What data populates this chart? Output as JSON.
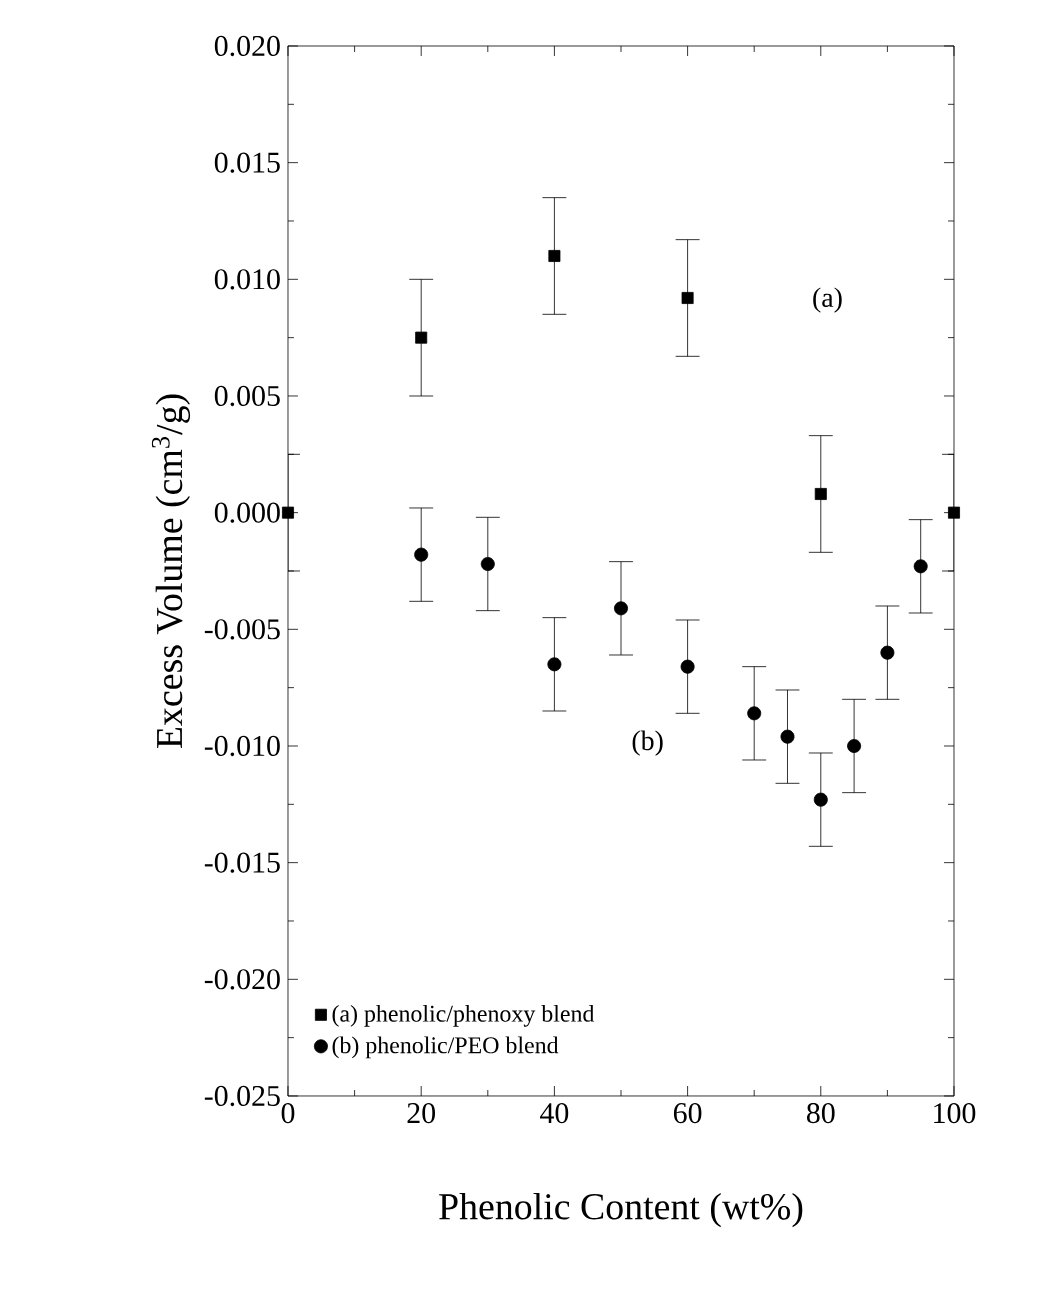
{
  "chart_data": {
    "type": "scatter",
    "xlabel": "Phenolic Content (wt%)",
    "ylabel": "Excess Volume (cm$^{3}$/g)",
    "xlim": [
      0,
      100
    ],
    "xticks": [
      0,
      20,
      40,
      60,
      80,
      100
    ],
    "ylim": [
      -0.025,
      0.02
    ],
    "yticks": [
      {
        "value": -0.025,
        "label": "-0.025"
      },
      {
        "value": -0.02,
        "label": "-0.020"
      },
      {
        "value": -0.015,
        "label": "-0.015"
      },
      {
        "value": -0.01,
        "label": "-0.010"
      },
      {
        "value": -0.005,
        "label": "-0.005"
      },
      {
        "value": 0,
        "label": "0.000"
      },
      {
        "value": 0.005,
        "label": "0.005"
      },
      {
        "value": 0.01,
        "label": "0.010"
      },
      {
        "value": 0.015,
        "label": "0.015"
      },
      {
        "value": 0.02,
        "label": "0.020"
      }
    ],
    "legend": "bottom left",
    "grid": false,
    "series": [
      {
        "name": "(a) phenolic/phenoxy blend",
        "color": "#000000",
        "marker": "square",
        "x": [
          0,
          20,
          40,
          60,
          80,
          100
        ],
        "values": [
          0,
          0.0075,
          0.011,
          0.0092,
          0.0008,
          0
        ],
        "errors": [
          0.0025,
          0.0025,
          0.0025,
          0.0025,
          0.0025,
          0.0025
        ]
      },
      {
        "name": "(b) phenolic/PEO blend",
        "color": "#000000",
        "marker": "circle",
        "x": [
          20,
          30,
          40,
          50,
          60,
          70,
          75,
          80,
          85,
          90,
          95
        ],
        "values": [
          -0.0018,
          -0.0022,
          -0.0065,
          -0.0041,
          -0.0066,
          -0.0086,
          -0.0096,
          -0.0123,
          -0.01,
          -0.006,
          -0.0023
        ],
        "errors": [
          0.002,
          0.002,
          0.002,
          0.002,
          0.002,
          0.002,
          0.002,
          0.002,
          0.002,
          0.002,
          0.002
        ]
      }
    ],
    "annotations": [
      "(a)",
      "(b)"
    ]
  }
}
